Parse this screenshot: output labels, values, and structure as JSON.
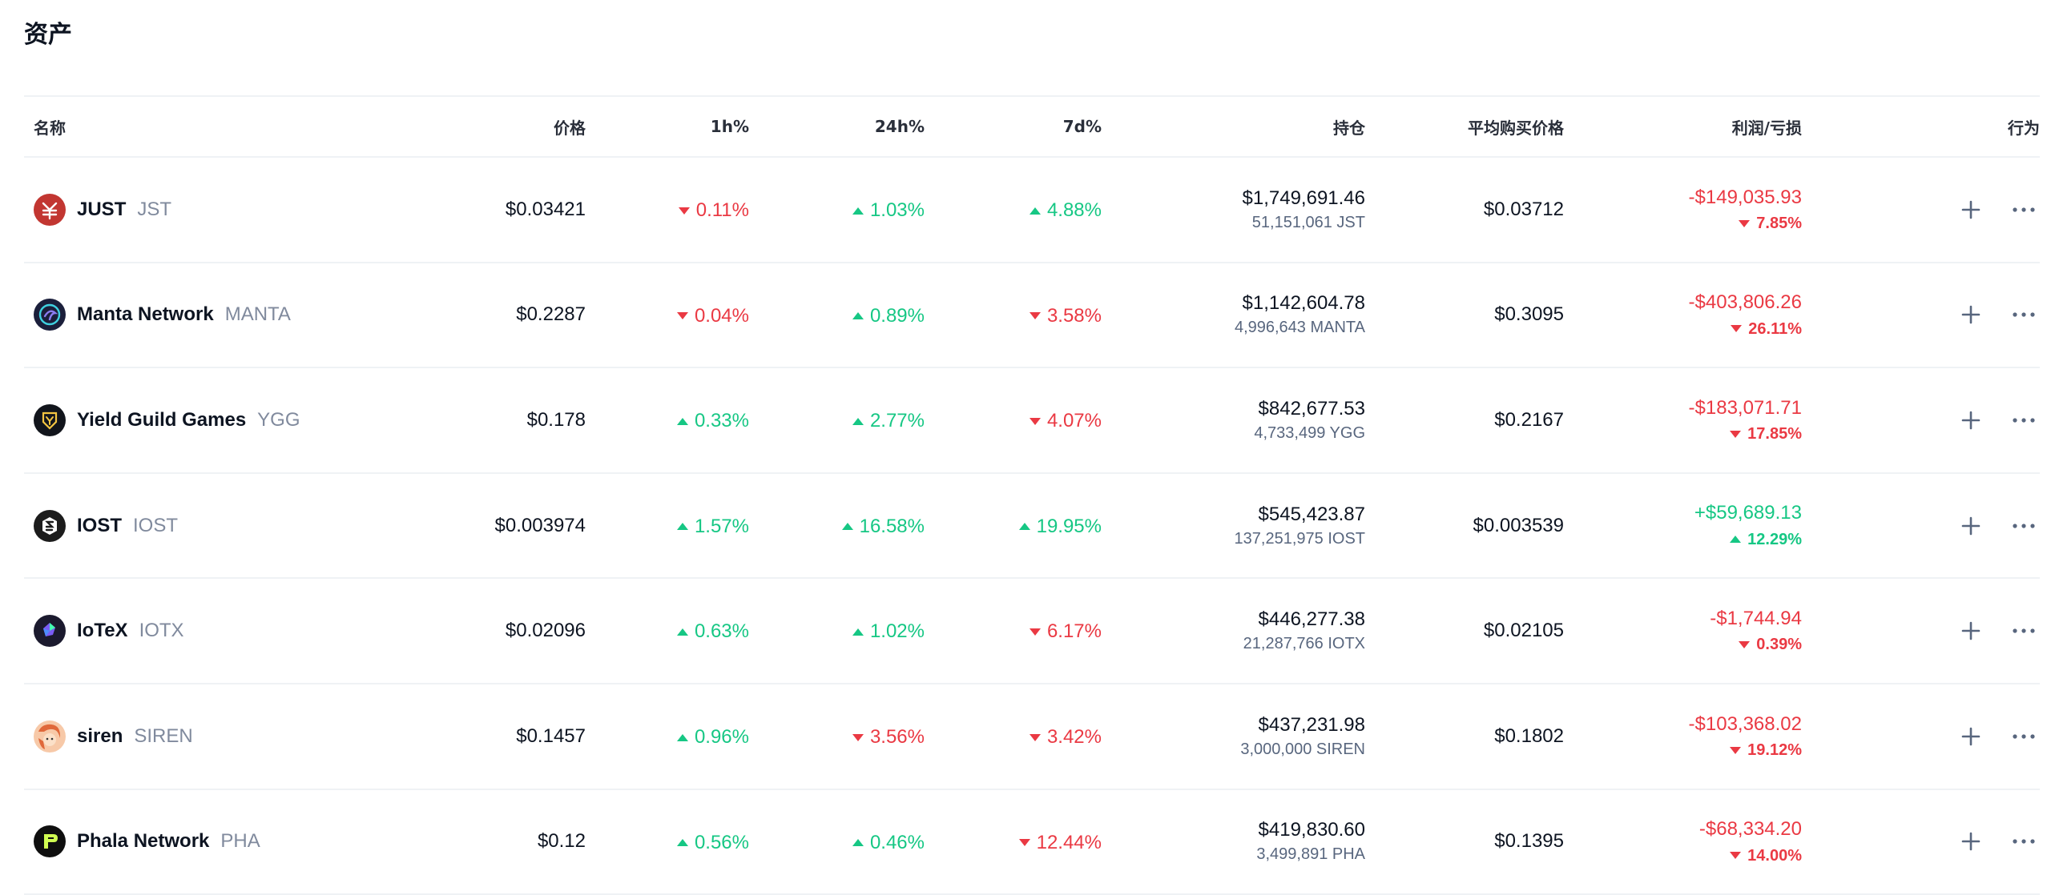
{
  "section": {
    "title": "资产"
  },
  "columns": {
    "name": "名称",
    "price": "价格",
    "h1": "1h%",
    "h24": "24h%",
    "d7": "7d%",
    "holdings": "持仓",
    "avg_buy": "平均购买价格",
    "pnl": "利润/亏损",
    "actions": "行为"
  },
  "colors": {
    "up": "#16c784",
    "down": "#ea3943"
  },
  "assets": [
    {
      "name": "JUST",
      "symbol": "JST",
      "icon": "just-logo-icon",
      "price": "$0.03421",
      "h1": "0.11%",
      "h1_dir": "down",
      "h24": "1.03%",
      "h24_dir": "up",
      "d7": "4.88%",
      "d7_dir": "up",
      "holding_value": "$1,749,691.46",
      "holding_amount": "51,151,061 JST",
      "avg_buy": "$0.03712",
      "pnl_value": "-$149,035.93",
      "pnl_pct": "7.85%",
      "pnl_dir": "down"
    },
    {
      "name": "Manta Network",
      "symbol": "MANTA",
      "icon": "manta-logo-icon",
      "price": "$0.2287",
      "h1": "0.04%",
      "h1_dir": "down",
      "h24": "0.89%",
      "h24_dir": "up",
      "d7": "3.58%",
      "d7_dir": "down",
      "holding_value": "$1,142,604.78",
      "holding_amount": "4,996,643 MANTA",
      "avg_buy": "$0.3095",
      "pnl_value": "-$403,806.26",
      "pnl_pct": "26.11%",
      "pnl_dir": "down"
    },
    {
      "name": "Yield Guild Games",
      "symbol": "YGG",
      "icon": "ygg-logo-icon",
      "price": "$0.178",
      "h1": "0.33%",
      "h1_dir": "up",
      "h24": "2.77%",
      "h24_dir": "up",
      "d7": "4.07%",
      "d7_dir": "down",
      "holding_value": "$842,677.53",
      "holding_amount": "4,733,499 YGG",
      "avg_buy": "$0.2167",
      "pnl_value": "-$183,071.71",
      "pnl_pct": "17.85%",
      "pnl_dir": "down"
    },
    {
      "name": "IOST",
      "symbol": "IOST",
      "icon": "iost-logo-icon",
      "price": "$0.003974",
      "h1": "1.57%",
      "h1_dir": "up",
      "h24": "16.58%",
      "h24_dir": "up",
      "d7": "19.95%",
      "d7_dir": "up",
      "holding_value": "$545,423.87",
      "holding_amount": "137,251,975 IOST",
      "avg_buy": "$0.003539",
      "pnl_value": "+$59,689.13",
      "pnl_pct": "12.29%",
      "pnl_dir": "up"
    },
    {
      "name": "IoTeX",
      "symbol": "IOTX",
      "icon": "iotex-logo-icon",
      "price": "$0.02096",
      "h1": "0.63%",
      "h1_dir": "up",
      "h24": "1.02%",
      "h24_dir": "up",
      "d7": "6.17%",
      "d7_dir": "down",
      "holding_value": "$446,277.38",
      "holding_amount": "21,287,766 IOTX",
      "avg_buy": "$0.02105",
      "pnl_value": "-$1,744.94",
      "pnl_pct": "0.39%",
      "pnl_dir": "down"
    },
    {
      "name": "siren",
      "symbol": "SIREN",
      "icon": "siren-logo-icon",
      "price": "$0.1457",
      "h1": "0.96%",
      "h1_dir": "up",
      "h24": "3.56%",
      "h24_dir": "down",
      "d7": "3.42%",
      "d7_dir": "down",
      "holding_value": "$437,231.98",
      "holding_amount": "3,000,000 SIREN",
      "avg_buy": "$0.1802",
      "pnl_value": "-$103,368.02",
      "pnl_pct": "19.12%",
      "pnl_dir": "down"
    },
    {
      "name": "Phala Network",
      "symbol": "PHA",
      "icon": "phala-logo-icon",
      "price": "$0.12",
      "h1": "0.56%",
      "h1_dir": "up",
      "h24": "0.46%",
      "h24_dir": "up",
      "d7": "12.44%",
      "d7_dir": "down",
      "holding_value": "$419,830.60",
      "holding_amount": "3,499,891 PHA",
      "avg_buy": "$0.1395",
      "pnl_value": "-$68,334.20",
      "pnl_pct": "14.00%",
      "pnl_dir": "down"
    }
  ]
}
